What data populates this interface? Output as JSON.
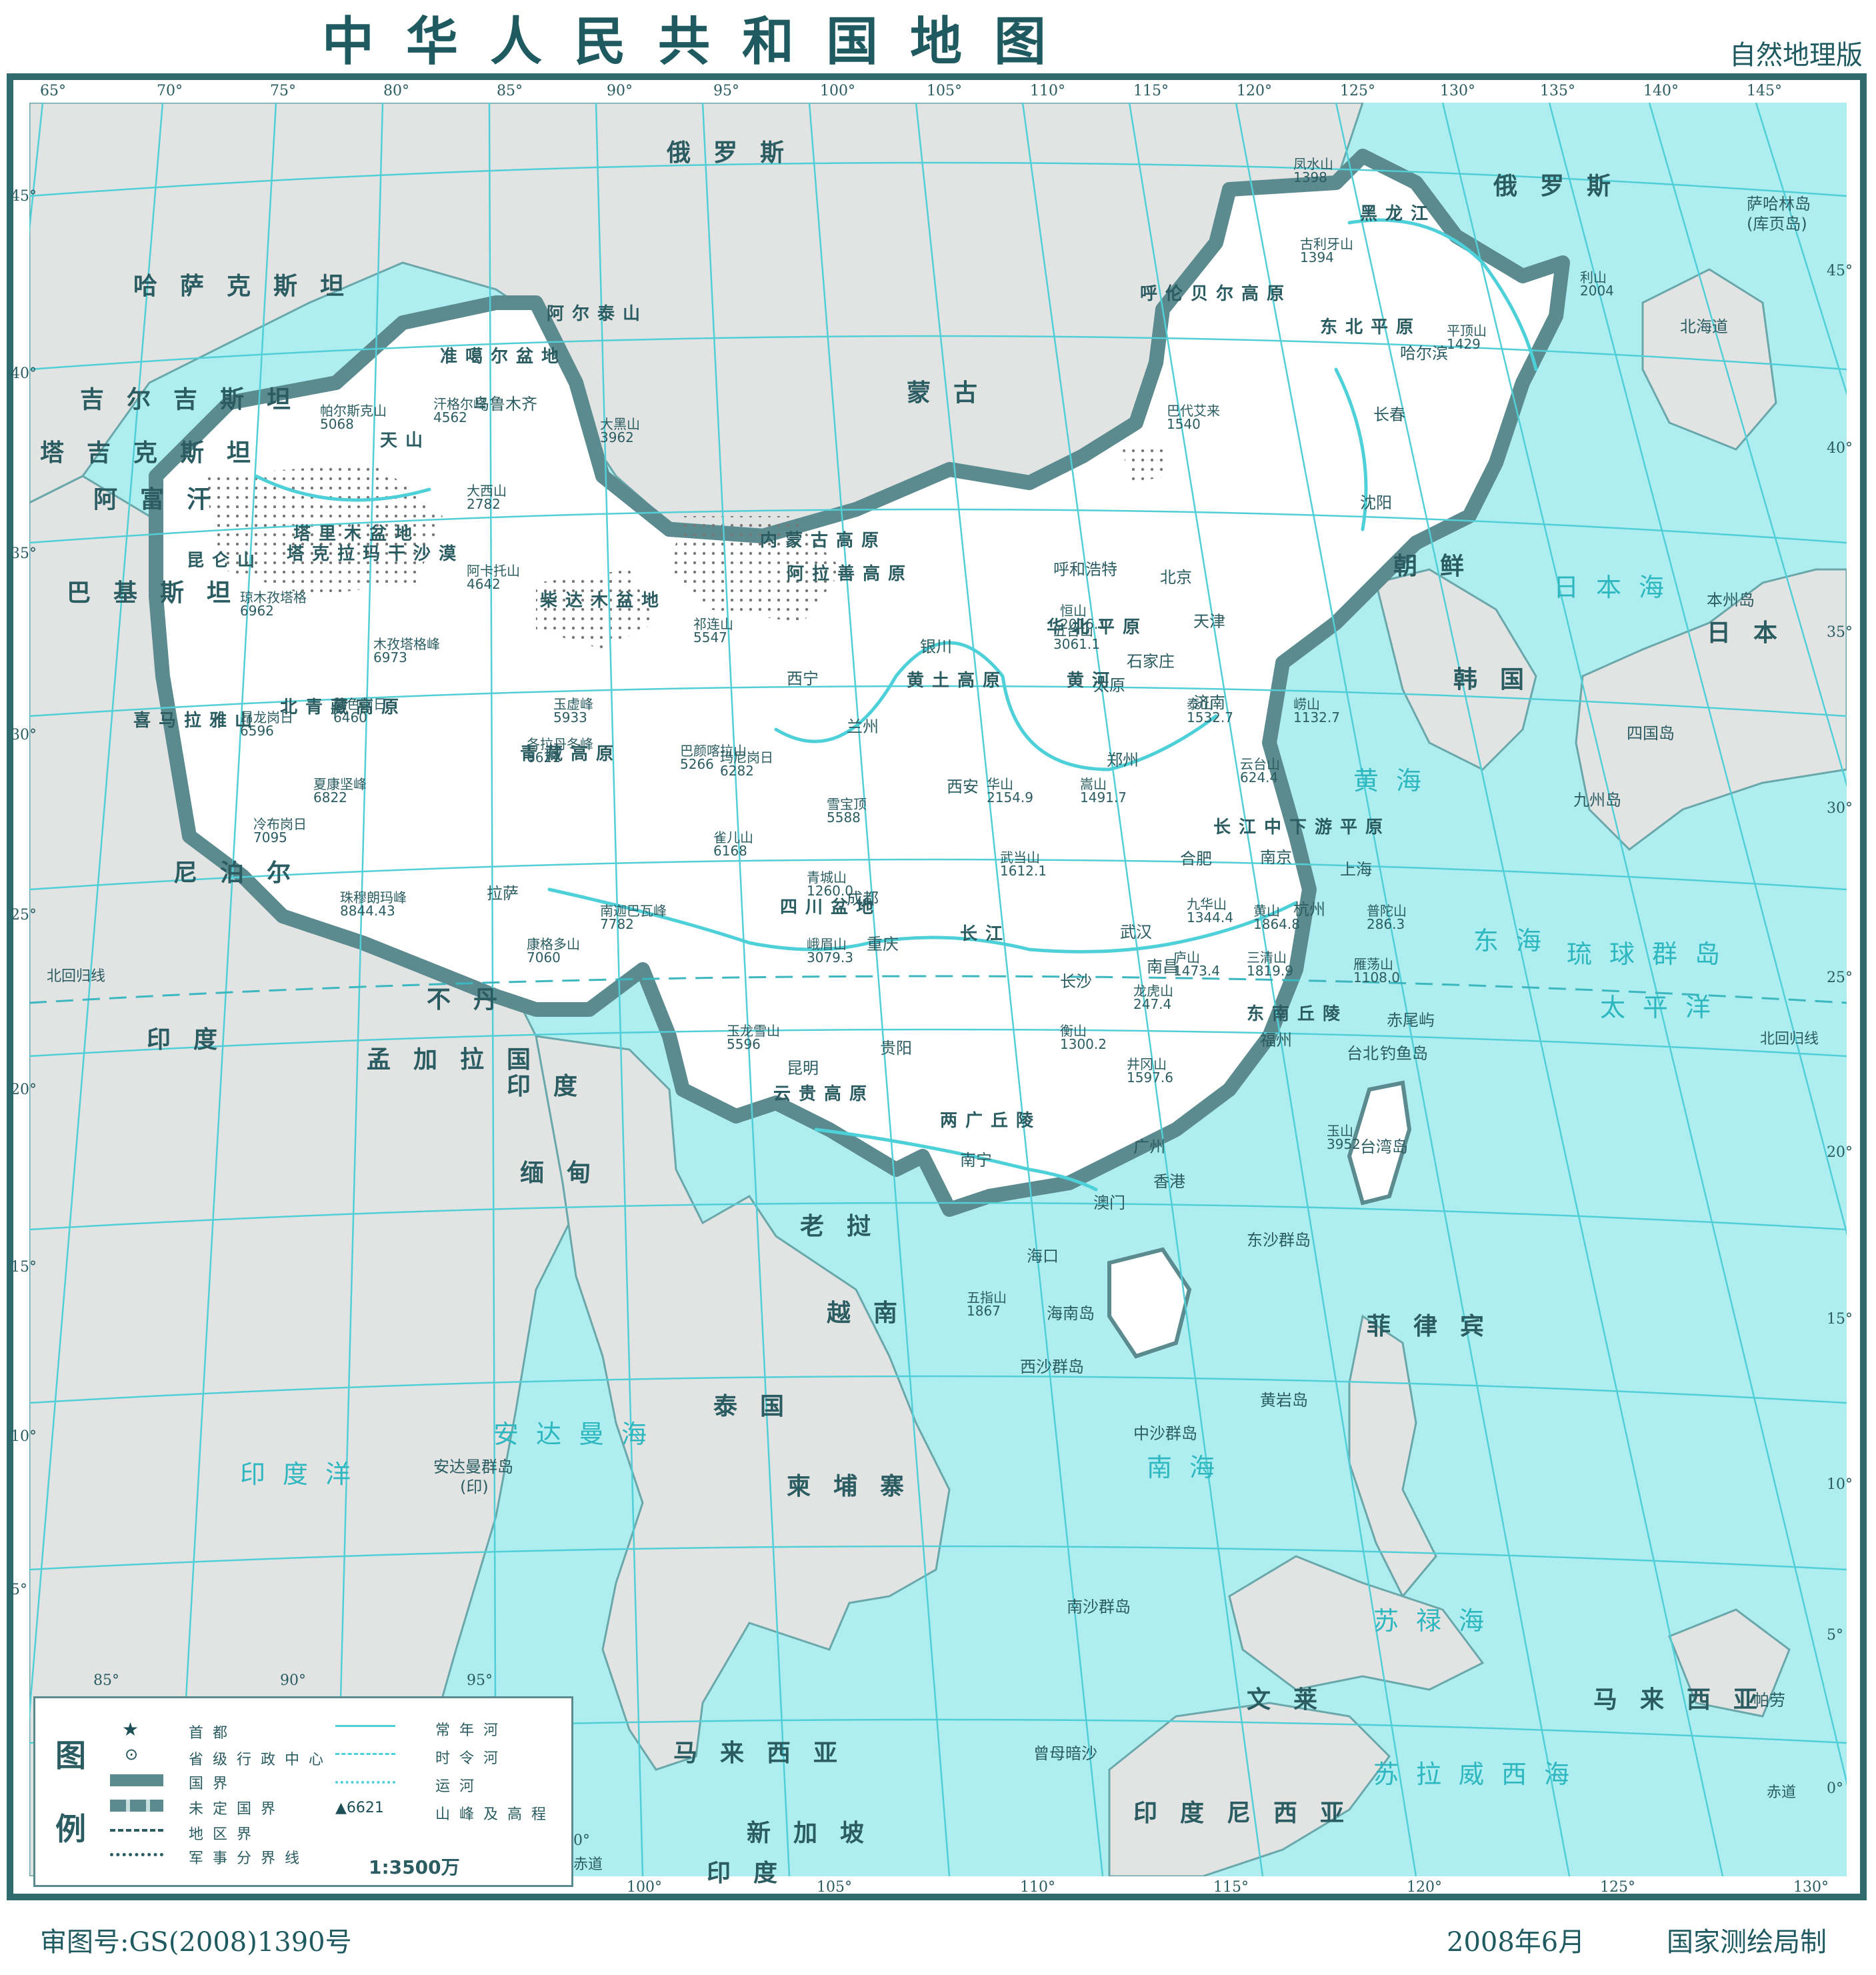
{
  "header": {
    "title": "中华人民共和国地图",
    "edition": "自然地理版"
  },
  "footer": {
    "review_no": "审图号:GS(2008)1390号",
    "date": "2008年6月",
    "publisher": "国家测绘局制"
  },
  "colors": {
    "sea": "#aeeef0",
    "land": "#ffffff",
    "foreign_land": "#e2e4e4",
    "grid": "#52cfd6",
    "border": "#5b8b8f",
    "text": "#1d4f57",
    "river": "#4ed0d8"
  },
  "top_lon_labels": [
    "65°",
    "70°",
    "75°",
    "80°",
    "85°",
    "90°",
    "95°",
    "100°",
    "105°",
    "110°",
    "115°",
    "120°",
    "125°",
    "130°",
    "135°",
    "140°",
    "145°"
  ],
  "bottom_lon_labels": [
    "100°",
    "105°",
    "110°",
    "115°",
    "120°",
    "125°",
    "130°"
  ],
  "inner_lon_labels": [
    "85°",
    "90°",
    "95°"
  ],
  "left_lat_labels": [
    "45°",
    "40°",
    "35°",
    "30°",
    "25°",
    "20°",
    "15°",
    "10°",
    "5°"
  ],
  "right_lat_labels": [
    "45°",
    "40°",
    "35°",
    "30°",
    "25°",
    "20°",
    "15°",
    "10°",
    "5°",
    "0°"
  ],
  "special_lines": {
    "tropic_left": "北回归线",
    "tropic_right": "北回归线",
    "equator": "赤道",
    "equator_left_lat": "0°"
  },
  "countries": [
    {
      "name": "俄罗斯"
    },
    {
      "name": "俄罗斯"
    },
    {
      "name": "哈萨克斯坦"
    },
    {
      "name": "蒙古"
    },
    {
      "name": "吉尔吉斯坦"
    },
    {
      "name": "塔吉克斯坦"
    },
    {
      "name": "阿富汗"
    },
    {
      "name": "巴基斯坦"
    },
    {
      "name": "印度"
    },
    {
      "name": "尼泊尔"
    },
    {
      "name": "不丹"
    },
    {
      "name": "孟加拉国"
    },
    {
      "name": "印度"
    },
    {
      "name": "缅甸"
    },
    {
      "name": "老挝"
    },
    {
      "name": "越南"
    },
    {
      "name": "泰国"
    },
    {
      "name": "柬埔寨"
    },
    {
      "name": "朝鲜"
    },
    {
      "name": "韩国"
    },
    {
      "name": "日本"
    },
    {
      "name": "菲律宾"
    },
    {
      "name": "马来西亚"
    },
    {
      "name": "马来西亚"
    },
    {
      "name": "文莱"
    },
    {
      "name": "新加坡"
    },
    {
      "name": "印度尼西亚"
    },
    {
      "name": "印度"
    }
  ],
  "seas": [
    {
      "name": "日本海"
    },
    {
      "name": "黄海"
    },
    {
      "name": "东海"
    },
    {
      "name": "南海"
    },
    {
      "name": "太平洋"
    },
    {
      "name": "印度洋"
    },
    {
      "name": "安达曼海"
    },
    {
      "name": "苏禄海"
    },
    {
      "name": "苏拉威西海"
    },
    {
      "name": "琉球群岛"
    }
  ],
  "regions": [
    {
      "name": "准噶尔盆地"
    },
    {
      "name": "塔里木盆地"
    },
    {
      "name": "塔克拉玛干沙漠"
    },
    {
      "name": "柴达木盆地"
    },
    {
      "name": "阿拉善高原"
    },
    {
      "name": "内蒙古高原"
    },
    {
      "name": "呼伦贝尔高原"
    },
    {
      "name": "东北平原"
    },
    {
      "name": "华北平原"
    },
    {
      "name": "黄土高原"
    },
    {
      "name": "青藏高原"
    },
    {
      "name": "四川盆地"
    },
    {
      "name": "云贵高原"
    },
    {
      "name": "两广丘陵"
    },
    {
      "name": "东南丘陵"
    },
    {
      "name": "长江中下游平原"
    },
    {
      "name": "天山"
    },
    {
      "name": "昆仑山"
    },
    {
      "name": "阿尔泰山"
    },
    {
      "name": "喜马拉雅山"
    },
    {
      "name": "黄河"
    },
    {
      "name": "长江"
    },
    {
      "name": "黑龙江"
    },
    {
      "name": "北青藏高原"
    }
  ],
  "cities": [
    {
      "name": "北京",
      "capital": true
    },
    {
      "name": "天津"
    },
    {
      "name": "石家庄"
    },
    {
      "name": "太原"
    },
    {
      "name": "呼和浩特"
    },
    {
      "name": "沈阳"
    },
    {
      "name": "长春"
    },
    {
      "name": "哈尔滨"
    },
    {
      "name": "济南"
    },
    {
      "name": "郑州"
    },
    {
      "name": "西安"
    },
    {
      "name": "兰州"
    },
    {
      "name": "西宁"
    },
    {
      "name": "银川"
    },
    {
      "name": "乌鲁木齐"
    },
    {
      "name": "拉萨"
    },
    {
      "name": "成都"
    },
    {
      "name": "重庆"
    },
    {
      "name": "武汉"
    },
    {
      "name": "合肥"
    },
    {
      "name": "南京"
    },
    {
      "name": "上海"
    },
    {
      "name": "杭州"
    },
    {
      "name": "南昌"
    },
    {
      "name": "长沙"
    },
    {
      "name": "福州"
    },
    {
      "name": "台北"
    },
    {
      "name": "贵阳"
    },
    {
      "name": "昆明"
    },
    {
      "name": "南宁"
    },
    {
      "name": "广州"
    },
    {
      "name": "香港"
    },
    {
      "name": "澳门"
    },
    {
      "name": "海口"
    }
  ],
  "peaks": [
    {
      "name": "凤水山",
      "elev": "1398"
    },
    {
      "name": "古利牙山",
      "elev": "1394"
    },
    {
      "name": "平顶山",
      "elev": "1429"
    },
    {
      "name": "巴代艾来",
      "elev": "1540"
    },
    {
      "name": "大黑山",
      "elev": "3962"
    },
    {
      "name": "汗格尔峰",
      "elev": "4562"
    },
    {
      "name": "帕尔斯克山",
      "elev": "5068"
    },
    {
      "name": "大西山",
      "elev": "2782"
    },
    {
      "name": "阿卡托山",
      "elev": "4642"
    },
    {
      "name": "琼木孜塔格",
      "elev": "6962"
    },
    {
      "name": "木孜塔格峰",
      "elev": "6973"
    },
    {
      "name": "祁连山",
      "elev": "5547"
    },
    {
      "name": "恒山",
      "elev": "2016.1"
    },
    {
      "name": "五台山",
      "elev": "3061.1"
    },
    {
      "name": "泰山",
      "elev": "1532.7"
    },
    {
      "name": "崂山",
      "elev": "1132.7"
    },
    {
      "name": "玉虚峰",
      "elev": "5933"
    },
    {
      "name": "藏色岗日",
      "elev": "6460"
    },
    {
      "name": "昂龙岗日",
      "elev": "6596"
    },
    {
      "name": "各拉丹冬峰",
      "elev": "6621"
    },
    {
      "name": "巴颜喀拉山",
      "elev": "5266"
    },
    {
      "name": "玛尼岗日",
      "elev": "6282"
    },
    {
      "name": "夏康坚峰",
      "elev": "6822"
    },
    {
      "name": "冷布岗日",
      "elev": "7095"
    },
    {
      "name": "华山",
      "elev": "2154.9"
    },
    {
      "name": "嵩山",
      "elev": "1491.7"
    },
    {
      "name": "云台山",
      "elev": "624.4"
    },
    {
      "name": "雪宝顶",
      "elev": "5588"
    },
    {
      "name": "雀儿山",
      "elev": "6168"
    },
    {
      "name": "武当山",
      "elev": "1612.1"
    },
    {
      "name": "青城山",
      "elev": "1260.0"
    },
    {
      "name": "珠穆朗玛峰",
      "elev": "8844.43"
    },
    {
      "name": "南迦巴瓦峰",
      "elev": "7782"
    },
    {
      "name": "康格多山",
      "elev": "7060"
    },
    {
      "name": "峨眉山",
      "elev": "3079.3"
    },
    {
      "name": "九华山",
      "elev": "1344.4"
    },
    {
      "name": "黄山",
      "elev": "1864.8"
    },
    {
      "name": "普陀山",
      "elev": "286.3"
    },
    {
      "name": "庐山",
      "elev": "1473.4"
    },
    {
      "name": "三清山",
      "elev": "1819.9"
    },
    {
      "name": "雁荡山",
      "elev": "1108.0"
    },
    {
      "name": "龙虎山",
      "elev": "247.4"
    },
    {
      "name": "玉龙雪山",
      "elev": "5596"
    },
    {
      "name": "衡山",
      "elev": "1300.2"
    },
    {
      "name": "井冈山",
      "elev": "1597.6"
    },
    {
      "name": "玉山",
      "elev": "3952"
    },
    {
      "name": "五指山",
      "elev": "1867"
    },
    {
      "name": "利山",
      "elev": "2004"
    }
  ],
  "islands": [
    {
      "name": "台湾岛"
    },
    {
      "name": "海南岛"
    },
    {
      "name": "东沙群岛"
    },
    {
      "name": "西沙群岛"
    },
    {
      "name": "中沙群岛"
    },
    {
      "name": "南沙群岛"
    },
    {
      "name": "黄岩岛"
    },
    {
      "name": "钓鱼岛"
    },
    {
      "name": "赤尾屿"
    },
    {
      "name": "曾母暗沙"
    },
    {
      "name": "北海道"
    },
    {
      "name": "本州岛"
    },
    {
      "name": "四国岛"
    },
    {
      "name": "九州岛"
    },
    {
      "name": "萨哈林岛"
    },
    {
      "name": "(库页岛)"
    },
    {
      "name": "安达曼群岛"
    },
    {
      "name": "(印)"
    },
    {
      "name": "帕劳"
    }
  ],
  "legend": {
    "title": [
      "图",
      "例"
    ],
    "items": [
      {
        "symbol": "capital",
        "label": "首都"
      },
      {
        "symbol": "prov-center",
        "label": "省级行政中心"
      },
      {
        "symbol": "national-border",
        "label": "国界"
      },
      {
        "symbol": "undefined-border",
        "label": "未定国界"
      },
      {
        "symbol": "region-border",
        "label": "地区界"
      },
      {
        "symbol": "military-line",
        "label": "军事分界线"
      },
      {
        "symbol": "perennial-river",
        "label": "常年河"
      },
      {
        "symbol": "seasonal-river",
        "label": "时令河"
      },
      {
        "symbol": "canal",
        "label": "运河"
      },
      {
        "symbol": "peak",
        "label": "山峰及高程",
        "sample": "6621"
      }
    ],
    "scale": "1:3500万"
  }
}
